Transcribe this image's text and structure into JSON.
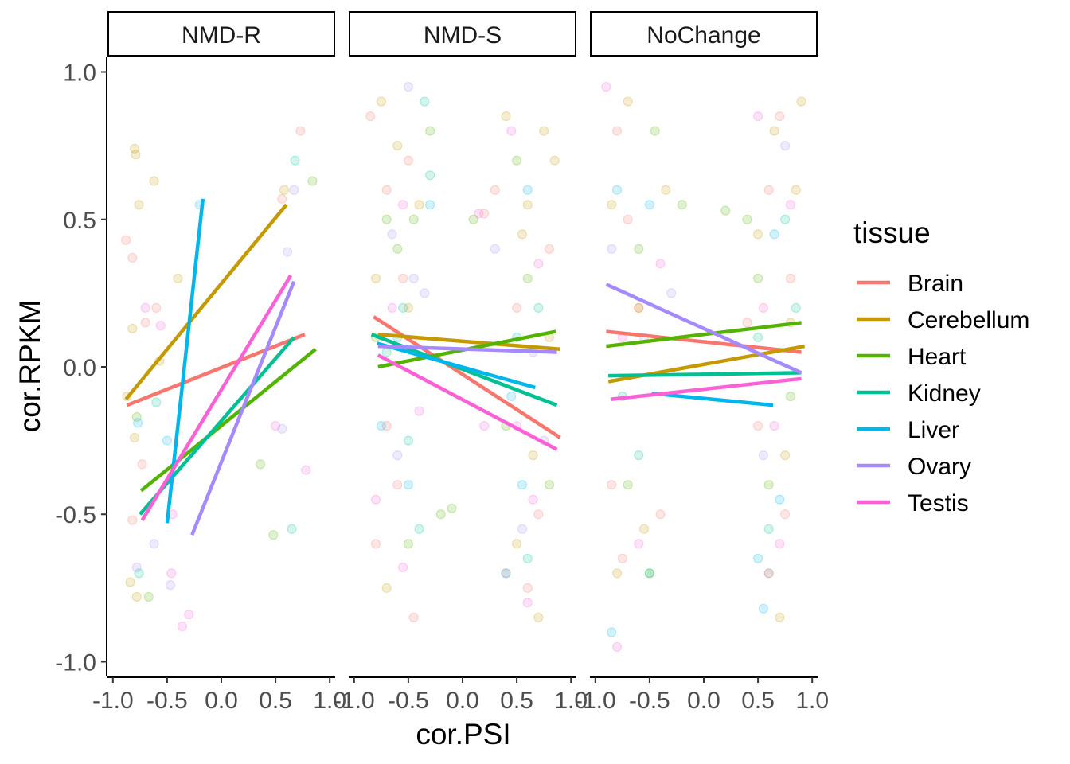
{
  "chart_data": {
    "type": "scatter",
    "xlabel": "cor.PSI",
    "ylabel": "cor.RPKM",
    "xlim": [
      -1.05,
      1.05
    ],
    "ylim": [
      -1.05,
      1.05
    ],
    "x_ticks": [
      "-1.0",
      "-0.5",
      "0.0",
      "0.5",
      "1.0"
    ],
    "y_ticks": [
      "-1.0",
      "-0.5",
      "0.0",
      "0.5",
      "1.0"
    ],
    "facets": [
      "NMD-R",
      "NMD-S",
      "NoChange"
    ],
    "legend": {
      "title": "tissue",
      "position": "right",
      "entries": [
        "Brain",
        "Cerebellum",
        "Heart",
        "Kidney",
        "Liver",
        "Ovary",
        "Testis"
      ]
    },
    "colors": {
      "Brain": "#F8766D",
      "Cerebellum": "#C49A00",
      "Heart": "#53B400",
      "Kidney": "#00C094",
      "Liver": "#00B6EB",
      "Ovary": "#A58AFF",
      "Testis": "#FB61D7"
    },
    "fit_lines": {
      "NMD-R": [
        {
          "tissue": "Brain",
          "x": [
            -0.87,
            0.77
          ],
          "y": [
            -0.13,
            0.11
          ]
        },
        {
          "tissue": "Cerebellum",
          "x": [
            -0.88,
            0.6
          ],
          "y": [
            -0.11,
            0.55
          ]
        },
        {
          "tissue": "Heart",
          "x": [
            -0.74,
            0.87
          ],
          "y": [
            -0.42,
            0.06
          ]
        },
        {
          "tissue": "Kidney",
          "x": [
            -0.75,
            0.67
          ],
          "y": [
            -0.5,
            0.1
          ]
        },
        {
          "tissue": "Liver",
          "x": [
            -0.5,
            -0.17
          ],
          "y": [
            -0.53,
            0.57
          ]
        },
        {
          "tissue": "Ovary",
          "x": [
            -0.27,
            0.67
          ],
          "y": [
            -0.57,
            0.29
          ]
        },
        {
          "tissue": "Testis",
          "x": [
            -0.73,
            0.64
          ],
          "y": [
            -0.52,
            0.31
          ]
        }
      ],
      "NMD-S": [
        {
          "tissue": "Brain",
          "x": [
            -0.82,
            0.9
          ],
          "y": [
            0.17,
            -0.24
          ]
        },
        {
          "tissue": "Cerebellum",
          "x": [
            -0.78,
            0.9
          ],
          "y": [
            0.11,
            0.06
          ]
        },
        {
          "tissue": "Heart",
          "x": [
            -0.78,
            0.86
          ],
          "y": [
            0.0,
            0.12
          ]
        },
        {
          "tissue": "Kidney",
          "x": [
            -0.84,
            0.87
          ],
          "y": [
            0.11,
            -0.13
          ]
        },
        {
          "tissue": "Liver",
          "x": [
            -0.79,
            0.67
          ],
          "y": [
            0.08,
            -0.07
          ]
        },
        {
          "tissue": "Ovary",
          "x": [
            -0.78,
            0.87
          ],
          "y": [
            0.07,
            0.05
          ]
        },
        {
          "tissue": "Testis",
          "x": [
            -0.78,
            0.87
          ],
          "y": [
            0.04,
            -0.28
          ]
        }
      ],
      "NoChange": [
        {
          "tissue": "Brain",
          "x": [
            -0.9,
            0.9
          ],
          "y": [
            0.12,
            0.05
          ]
        },
        {
          "tissue": "Cerebellum",
          "x": [
            -0.88,
            0.93
          ],
          "y": [
            -0.05,
            0.07
          ]
        },
        {
          "tissue": "Heart",
          "x": [
            -0.9,
            0.9
          ],
          "y": [
            0.07,
            0.15
          ]
        },
        {
          "tissue": "Kidney",
          "x": [
            -0.88,
            0.9
          ],
          "y": [
            -0.03,
            -0.02
          ]
        },
        {
          "tissue": "Liver",
          "x": [
            -0.48,
            0.64
          ],
          "y": [
            -0.09,
            -0.13
          ]
        },
        {
          "tissue": "Ovary",
          "x": [
            -0.9,
            0.9
          ],
          "y": [
            0.28,
            -0.02
          ]
        },
        {
          "tissue": "Testis",
          "x": [
            -0.86,
            0.9
          ],
          "y": [
            -0.11,
            -0.04
          ]
        }
      ]
    },
    "points": {
      "NMD-R": {
        "Brain": [
          [
            -0.88,
            0.43
          ],
          [
            -0.82,
            0.37
          ],
          [
            -0.73,
            -0.33
          ],
          [
            -0.7,
            0.15
          ],
          [
            0.56,
            0.57
          ],
          [
            0.73,
            0.8
          ],
          [
            -0.82,
            -0.52
          ],
          [
            -0.6,
            0.2
          ]
        ],
        "Cerebellum": [
          [
            -0.8,
            0.74
          ],
          [
            -0.79,
            0.72
          ],
          [
            -0.76,
            0.55
          ],
          [
            -0.62,
            0.63
          ],
          [
            -0.82,
            0.13
          ],
          [
            -0.87,
            -0.1
          ],
          [
            -0.78,
            -0.78
          ],
          [
            -0.84,
            -0.73
          ],
          [
            -0.4,
            0.3
          ],
          [
            0.58,
            0.6
          ],
          [
            -0.57,
            0.02
          ],
          [
            -0.8,
            -0.24
          ]
        ],
        "Heart": [
          [
            -0.78,
            -0.17
          ],
          [
            -0.67,
            -0.78
          ],
          [
            0.36,
            -0.33
          ],
          [
            0.48,
            -0.57
          ],
          [
            0.84,
            0.63
          ]
        ],
        "Kidney": [
          [
            0.65,
            -0.55
          ],
          [
            0.68,
            0.7
          ],
          [
            -0.76,
            -0.7
          ],
          [
            -0.6,
            -0.12
          ]
        ],
        "Liver": [
          [
            -0.2,
            0.55
          ],
          [
            -0.5,
            -0.25
          ],
          [
            -0.77,
            -0.19
          ]
        ],
        "Ovary": [
          [
            -0.78,
            -0.68
          ],
          [
            -0.47,
            -0.74
          ],
          [
            0.56,
            -0.21
          ],
          [
            0.61,
            0.39
          ],
          [
            0.67,
            0.6
          ],
          [
            -0.62,
            -0.6
          ]
        ],
        "Testis": [
          [
            -0.7,
            0.2
          ],
          [
            -0.46,
            -0.7
          ],
          [
            -0.3,
            -0.84
          ],
          [
            -0.45,
            -0.5
          ],
          [
            0.5,
            -0.2
          ],
          [
            -0.56,
            0.14
          ],
          [
            -0.36,
            -0.88
          ],
          [
            0.78,
            -0.35
          ]
        ]
      },
      "NMD-S": {
        "Brain": [
          [
            -0.85,
            0.85
          ],
          [
            -0.7,
            0.6
          ],
          [
            -0.55,
            0.3
          ],
          [
            -0.6,
            -0.4
          ],
          [
            -0.8,
            -0.6
          ],
          [
            -0.5,
            0.7
          ],
          [
            0.5,
            0.2
          ],
          [
            0.7,
            -0.5
          ],
          [
            0.4,
            -0.7
          ],
          [
            0.8,
            0.4
          ],
          [
            -0.7,
            -0.2
          ],
          [
            0.3,
            0.6
          ],
          [
            0.2,
            0.52
          ],
          [
            0.6,
            -0.75
          ],
          [
            -0.45,
            -0.85
          ]
        ],
        "Cerebellum": [
          [
            -0.75,
            0.9
          ],
          [
            -0.6,
            0.75
          ],
          [
            -0.5,
            0.2
          ],
          [
            0.6,
            0.55
          ],
          [
            0.75,
            0.8
          ],
          [
            0.8,
            0.1
          ],
          [
            0.5,
            -0.6
          ],
          [
            0.7,
            -0.85
          ],
          [
            -0.7,
            -0.75
          ],
          [
            -0.4,
            0.55
          ],
          [
            0.85,
            0.7
          ],
          [
            0.55,
            0.45
          ],
          [
            -0.8,
            0.3
          ],
          [
            0.65,
            -0.3
          ],
          [
            0.4,
            0.85
          ]
        ],
        "Heart": [
          [
            -0.6,
            0.4
          ],
          [
            -0.8,
            0.1
          ],
          [
            -0.45,
            0.5
          ],
          [
            -0.3,
            0.8
          ],
          [
            0.6,
            0.3
          ],
          [
            0.4,
            -0.2
          ],
          [
            -0.5,
            -0.6
          ],
          [
            -0.2,
            -0.5
          ],
          [
            0.8,
            -0.4
          ],
          [
            -0.7,
            0.5
          ],
          [
            0.1,
            0.5
          ],
          [
            -0.1,
            -0.48
          ],
          [
            0.5,
            0.7
          ]
        ],
        "Kidney": [
          [
            -0.55,
            0.2
          ],
          [
            -0.35,
            0.9
          ],
          [
            -0.5,
            -0.25
          ],
          [
            -0.7,
            0.05
          ],
          [
            0.6,
            -0.65
          ],
          [
            0.5,
            0.1
          ],
          [
            -0.4,
            -0.55
          ],
          [
            0.7,
            0.2
          ],
          [
            -0.3,
            0.65
          ]
        ],
        "Liver": [
          [
            -0.6,
            0.1
          ],
          [
            -0.5,
            -0.4
          ],
          [
            -0.75,
            -0.2
          ],
          [
            0.55,
            -0.4
          ],
          [
            0.6,
            0.6
          ],
          [
            -0.3,
            0.55
          ],
          [
            0.45,
            -0.1
          ],
          [
            0.4,
            -0.7
          ]
        ],
        "Ovary": [
          [
            -0.5,
            0.95
          ],
          [
            -0.45,
            0.3
          ],
          [
            -0.6,
            -0.3
          ],
          [
            0.65,
            0.05
          ],
          [
            0.55,
            -0.55
          ],
          [
            -0.65,
            0.45
          ],
          [
            0.75,
            -0.25
          ],
          [
            -0.35,
            0.25
          ],
          [
            0.3,
            0.4
          ]
        ],
        "Testis": [
          [
            -0.55,
            0.55
          ],
          [
            -0.8,
            -0.45
          ],
          [
            -0.65,
            0.2
          ],
          [
            0.5,
            -0.2
          ],
          [
            0.7,
            0.35
          ],
          [
            0.6,
            -0.8
          ],
          [
            -0.4,
            -0.15
          ],
          [
            0.2,
            -0.2
          ],
          [
            0.45,
            0.8
          ],
          [
            -0.55,
            -0.68
          ],
          [
            0.65,
            -0.45
          ],
          [
            0.15,
            0.52
          ]
        ]
      },
      "NoChange": {
        "Brain": [
          [
            -0.8,
            0.8
          ],
          [
            -0.7,
            0.5
          ],
          [
            -0.85,
            -0.4
          ],
          [
            0.6,
            0.6
          ],
          [
            0.75,
            -0.5
          ],
          [
            0.8,
            0.3
          ],
          [
            -0.6,
            0.2
          ],
          [
            0.5,
            -0.2
          ],
          [
            -0.75,
            -0.65
          ],
          [
            0.7,
            0.85
          ],
          [
            0.4,
            0.15
          ],
          [
            -0.4,
            -0.5
          ]
        ],
        "Cerebellum": [
          [
            -0.7,
            0.9
          ],
          [
            -0.6,
            0.2
          ],
          [
            0.65,
            0.8
          ],
          [
            0.85,
            0.6
          ],
          [
            0.7,
            -0.85
          ],
          [
            -0.8,
            -0.7
          ],
          [
            0.5,
            0.45
          ],
          [
            -0.55,
            -0.55
          ],
          [
            0.8,
            0.15
          ],
          [
            0.75,
            -0.3
          ],
          [
            -0.85,
            0.55
          ],
          [
            0.9,
            0.9
          ],
          [
            -0.35,
            0.6
          ],
          [
            0.6,
            -0.7
          ]
        ],
        "Heart": [
          [
            -0.6,
            0.4
          ],
          [
            -0.45,
            0.8
          ],
          [
            0.5,
            0.3
          ],
          [
            0.8,
            -0.1
          ],
          [
            -0.7,
            -0.4
          ],
          [
            0.4,
            0.5
          ],
          [
            -0.5,
            -0.7
          ],
          [
            0.6,
            -0.4
          ],
          [
            0.2,
            0.53
          ],
          [
            -0.2,
            0.55
          ]
        ],
        "Kidney": [
          [
            -0.5,
            -0.7
          ],
          [
            0.6,
            -0.55
          ],
          [
            0.75,
            0.5
          ],
          [
            -0.75,
            -0.1
          ],
          [
            0.5,
            0.1
          ],
          [
            -0.6,
            -0.3
          ],
          [
            0.85,
            0.2
          ]
        ],
        "Liver": [
          [
            -0.8,
            0.6
          ],
          [
            0.5,
            -0.65
          ],
          [
            0.7,
            -0.45
          ],
          [
            -0.5,
            0.55
          ],
          [
            0.65,
            0.45
          ],
          [
            -0.85,
            -0.9
          ],
          [
            0.55,
            -0.82
          ]
        ],
        "Ovary": [
          [
            -0.85,
            0.4
          ],
          [
            0.6,
            -0.7
          ],
          [
            0.75,
            0.75
          ],
          [
            -0.55,
            0.1
          ],
          [
            0.55,
            -0.3
          ],
          [
            -0.3,
            0.25
          ]
        ],
        "Testis": [
          [
            -0.9,
            0.95
          ],
          [
            -0.6,
            -0.6
          ],
          [
            0.65,
            -0.2
          ],
          [
            0.8,
            0.55
          ],
          [
            -0.75,
            0.1
          ],
          [
            0.5,
            0.85
          ],
          [
            -0.4,
            0.35
          ],
          [
            0.7,
            -0.6
          ],
          [
            -0.8,
            -0.95
          ],
          [
            0.55,
            0.2
          ]
        ]
      }
    }
  }
}
